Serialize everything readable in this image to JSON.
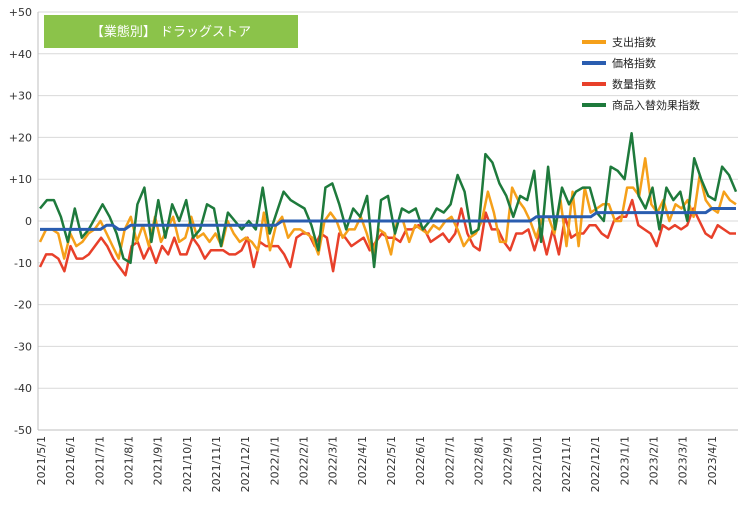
{
  "chart_data": {
    "type": "line",
    "title": "【業態別】 ドラッグストア",
    "title_bg_color": "#8bc34a",
    "ylim": [
      -50,
      50
    ],
    "y_ticks": [
      50,
      40,
      30,
      20,
      10,
      0,
      -10,
      -20,
      -30,
      -40,
      -50
    ],
    "y_tick_labels": [
      "+50",
      "+40",
      "+30",
      "+20",
      "+10",
      "0",
      "-10",
      "-20",
      "-30",
      "-40",
      "-50"
    ],
    "x_tick_labels": [
      "2021/5/1",
      "2021/6/1",
      "2021/7/1",
      "2021/8/1",
      "2021/9/1",
      "2021/10/1",
      "2021/11/1",
      "2021/12/1",
      "2022/1/1",
      "2022/2/1",
      "2022/3/1",
      "2022/4/1",
      "2022/5/1",
      "2022/6/1",
      "2022/7/1",
      "2022/8/1",
      "2022/9/1",
      "2022/10/1",
      "2022/11/1",
      "2022/12/1",
      "2023/1/1",
      "2023/2/1",
      "2023/3/1",
      "2023/4/1"
    ],
    "grid": true,
    "legend_position": "top-right",
    "series": [
      {
        "name": "支出指数",
        "color": "#f5a01a",
        "values": [
          -5,
          -2,
          -2,
          -3,
          -9,
          -3,
          -6,
          -5,
          -3,
          -2,
          0,
          -3,
          -6,
          -9,
          -2,
          1,
          -5,
          -1,
          -6,
          1,
          -5,
          -2,
          1,
          -5,
          -4,
          1,
          -4,
          -3,
          -5,
          -3,
          -6,
          0,
          -3,
          -5,
          -4,
          -5,
          -7,
          2,
          -7,
          -1,
          1,
          -4,
          -2,
          -2,
          -3,
          -4,
          -8,
          0,
          2,
          0,
          -4,
          -2,
          -2,
          1,
          -3,
          -8,
          -2,
          -3,
          -8,
          0,
          0,
          -5,
          -1,
          -2,
          -3,
          -1,
          -2,
          0,
          1,
          -2,
          -6,
          -4,
          -3,
          0,
          7,
          2,
          -5,
          -5,
          8,
          5,
          3,
          0,
          -4,
          1,
          1,
          -3,
          5,
          -6,
          7,
          -6,
          8,
          2,
          3,
          4,
          4,
          0,
          0,
          8,
          8,
          6,
          15,
          4,
          2,
          5,
          0,
          4,
          3,
          5,
          1,
          11,
          5,
          3,
          2,
          7,
          5,
          4
        ]
      },
      {
        "name": "価格指数",
        "color": "#2a5db0",
        "values": [
          -2,
          -2,
          -2,
          -2,
          -2,
          -2,
          -2,
          -2,
          -2,
          -2,
          -2,
          -1,
          -1,
          -2,
          -2,
          -1,
          -1,
          -1,
          -1,
          -1,
          -1,
          -1,
          -1,
          -1,
          -1,
          -1,
          -1,
          -1,
          -1,
          -1,
          -1,
          -1,
          -1,
          -1,
          -1,
          -1,
          -1,
          -1,
          -1,
          -1,
          0,
          0,
          0,
          0,
          0,
          0,
          0,
          0,
          0,
          0,
          0,
          0,
          0,
          0,
          0,
          0,
          0,
          0,
          0,
          0,
          0,
          0,
          0,
          0,
          0,
          0,
          0,
          0,
          0,
          0,
          0,
          0,
          0,
          0,
          0,
          0,
          0,
          0,
          0,
          0,
          0,
          0,
          1,
          1,
          1,
          1,
          1,
          1,
          1,
          1,
          1,
          1,
          2,
          2,
          2,
          2,
          2,
          2,
          2,
          2,
          2,
          2,
          2,
          2,
          2,
          2,
          2,
          2,
          2,
          2,
          2,
          3,
          3,
          3,
          3,
          3
        ]
      },
      {
        "name": "数量指数",
        "color": "#e8402a",
        "values": [
          -11,
          -8,
          -8,
          -9,
          -12,
          -6,
          -9,
          -9,
          -8,
          -6,
          -4,
          -6,
          -9,
          -11,
          -13,
          -6,
          -5,
          -9,
          -6,
          -10,
          -6,
          -8,
          -4,
          -8,
          -8,
          -4,
          -6,
          -9,
          -7,
          -7,
          -7,
          -8,
          -8,
          -7,
          -4,
          -11,
          -5,
          -6,
          -6,
          -6,
          -8,
          -11,
          -4,
          -3,
          -3,
          -6,
          -3,
          -4,
          -12,
          -3,
          -4,
          -6,
          -5,
          -4,
          -7,
          -5,
          -3,
          -4,
          -4,
          -5,
          -2,
          -2,
          -1,
          -2,
          -5,
          -4,
          -3,
          -5,
          -3,
          3,
          -3,
          -6,
          -7,
          2,
          -2,
          -2,
          -5,
          -7,
          -3,
          -3,
          -2,
          -7,
          -2,
          -8,
          -2,
          -8,
          1,
          -4,
          -3,
          -3,
          -1,
          -1,
          -3,
          -4,
          0,
          1,
          1,
          5,
          -1,
          -2,
          -3,
          -6,
          -1,
          -2,
          -1,
          -2,
          -1,
          3,
          0,
          -3,
          -4,
          -1,
          -2,
          -3,
          -3
        ]
      },
      {
        "name": "商品入替効果指数",
        "color": "#1e7a3c",
        "values": [
          3,
          5,
          5,
          1,
          -5,
          3,
          -4,
          -2,
          1,
          4,
          1,
          -3,
          -9,
          -10,
          4,
          8,
          -5,
          5,
          -4,
          4,
          0,
          5,
          -4,
          -2,
          4,
          3,
          -6,
          2,
          0,
          -2,
          0,
          -2,
          8,
          -3,
          2,
          7,
          5,
          4,
          3,
          -1,
          -7,
          8,
          9,
          4,
          -2,
          3,
          1,
          6,
          -11,
          5,
          6,
          -3,
          3,
          2,
          3,
          -2,
          0,
          3,
          2,
          4,
          11,
          7,
          -3,
          -2,
          16,
          14,
          9,
          6,
          1,
          6,
          5,
          12,
          -5,
          13,
          -2,
          8,
          4,
          7,
          8,
          8,
          2,
          0,
          13,
          12,
          10,
          21,
          6,
          3,
          8,
          -2,
          8,
          5,
          7,
          0,
          15,
          10,
          6,
          5,
          13,
          11,
          7
        ]
      }
    ]
  }
}
